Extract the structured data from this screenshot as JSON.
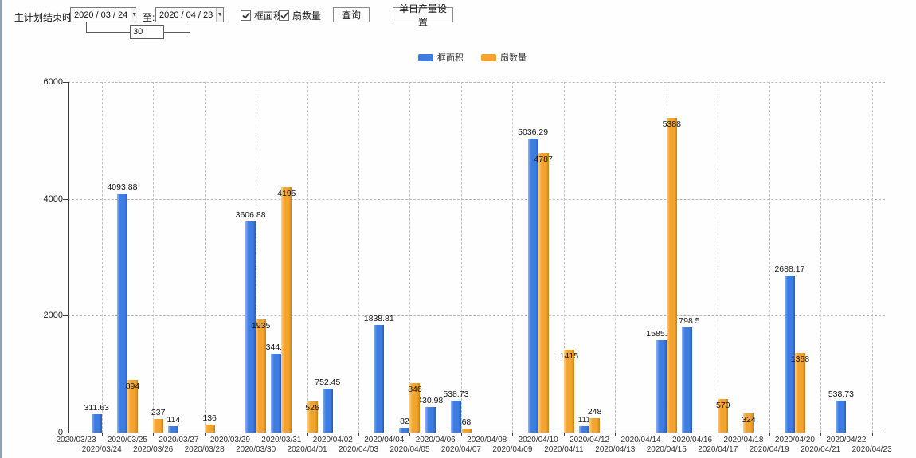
{
  "toolbar": {
    "end_time_label": "主计划结束时间:",
    "start_date": "2020 / 03 / 24",
    "to_label": "至:",
    "end_date": "2020 / 04 / 23",
    "interval_days": "30",
    "checkboxes": [
      {
        "label": "框面积",
        "checked": true
      },
      {
        "label": "扇数量",
        "checked": true
      }
    ],
    "query_button_label": "查询",
    "daily_output_button_label": "单日产量设置"
  },
  "chart_data": {
    "type": "bar",
    "title": "",
    "xlabel": "",
    "ylabel": "",
    "ylim": [
      0,
      6000
    ],
    "yticks": [
      0,
      2000,
      4000,
      6000
    ],
    "grid": "dashed",
    "legend_position": "top",
    "bar_value_labels": true,
    "categories": [
      "2020/03/23",
      "2020/03/24",
      "2020/03/25",
      "2020/03/26",
      "2020/03/27",
      "2020/03/28",
      "2020/03/29",
      "2020/03/30",
      "2020/03/31",
      "2020/04/01",
      "2020/04/02",
      "2020/04/03",
      "2020/04/04",
      "2020/04/05",
      "2020/04/06",
      "2020/04/07",
      "2020/04/08",
      "2020/04/09",
      "2020/04/10",
      "2020/04/11",
      "2020/04/12",
      "2020/04/13",
      "2020/04/14",
      "2020/04/15",
      "2020/04/16",
      "2020/04/17",
      "2020/04/18",
      "2020/04/19",
      "2020/04/20",
      "2020/04/21",
      "2020/04/22",
      "2020/04/23"
    ],
    "series": [
      {
        "name": "框面积",
        "color": "#3d7de2",
        "color_light": "#8db2f2",
        "color_dark": "#2b5cb5",
        "values": [
          null,
          311.63,
          4093.88,
          null,
          114,
          null,
          null,
          3606.88,
          1344.95,
          null,
          752.45,
          null,
          1838.81,
          82,
          430.98,
          538.73,
          null,
          null,
          5036.29,
          null,
          111,
          null,
          null,
          1585.96,
          1798.5,
          null,
          null,
          null,
          2688.17,
          null,
          538.73,
          null
        ]
      },
      {
        "name": "扇数量",
        "color": "#f4a42e",
        "color_light": "#ffd083",
        "color_dark": "#cf8118",
        "values": [
          null,
          null,
          894,
          237,
          null,
          136,
          null,
          1935,
          4195,
          526,
          null,
          null,
          null,
          846,
          null,
          68,
          null,
          null,
          4787,
          1415,
          248,
          null,
          null,
          5388,
          null,
          570,
          324,
          null,
          1368,
          null,
          null,
          null
        ]
      }
    ]
  }
}
